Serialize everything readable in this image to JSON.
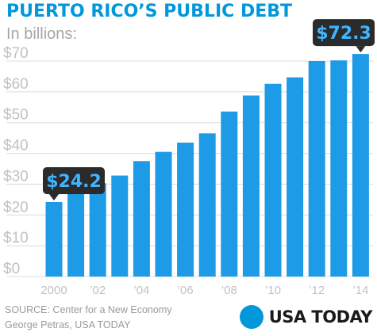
{
  "header": {
    "title": "PUERTO RICO’S PUBLIC DEBT",
    "subtitle": "In billions:"
  },
  "footer": {
    "source": "SOURCE: Center for a New Economy",
    "credit": "George Petras, USA TODAY",
    "logo_text": "USA TODAY"
  },
  "colors": {
    "bar": "#1e9be6",
    "title": "#0098db",
    "callout_bg": "#2b2b2b",
    "callout_text": "#3fb4ff",
    "grid": "#dcdcdc",
    "axis_text": "#c2c2c2"
  },
  "chart_data": {
    "type": "bar",
    "title": "PUERTO RICO’S PUBLIC DEBT",
    "subtitle": "In billions:",
    "categories": [
      "2000",
      "2001",
      "2002",
      "2003",
      "2004",
      "2005",
      "2006",
      "2007",
      "2008",
      "2009",
      "2010",
      "2011",
      "2012",
      "2013",
      "2014"
    ],
    "x_tick_labels": [
      {
        "index": 0,
        "label": "2000"
      },
      {
        "index": 2,
        "label": "’02"
      },
      {
        "index": 4,
        "label": "’04"
      },
      {
        "index": 6,
        "label": "’06"
      },
      {
        "index": 8,
        "label": "’08"
      },
      {
        "index": 10,
        "label": "’10"
      },
      {
        "index": 12,
        "label": "’12"
      },
      {
        "index": 14,
        "label": "’14"
      }
    ],
    "values": [
      24.2,
      27.1,
      30.3,
      32.8,
      37.5,
      40.5,
      43.5,
      46.5,
      53.6,
      58.8,
      62.6,
      64.7,
      70.0,
      70.2,
      72.3
    ],
    "ylim": [
      0,
      75
    ],
    "yticks": [
      0,
      10,
      20,
      30,
      40,
      50,
      60,
      70
    ],
    "ytick_labels": [
      "$0",
      "$10",
      "$20",
      "$30",
      "$40",
      "$50",
      "$60",
      "$70"
    ],
    "grid": true,
    "annotations": [
      {
        "index": 0,
        "text": "$24.2"
      },
      {
        "index": 14,
        "text": "$72.3"
      }
    ]
  }
}
